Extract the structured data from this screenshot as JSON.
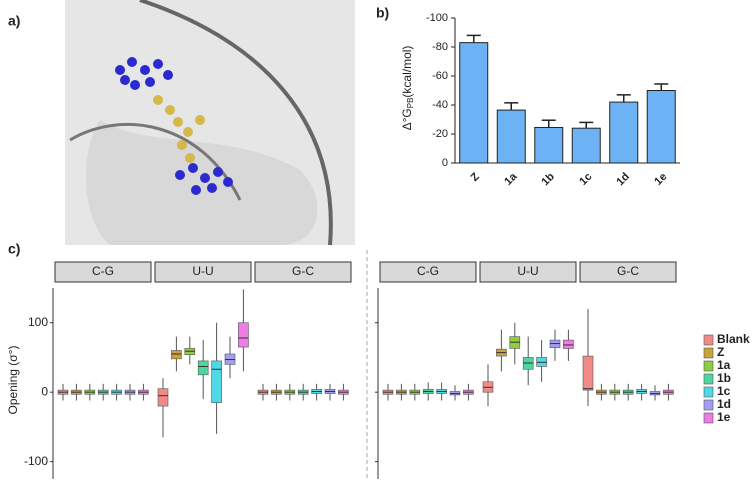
{
  "panel_labels": [
    "a)",
    "b)",
    "c)"
  ],
  "chart_data": [
    {
      "type": "bar",
      "ylabel_parts": [
        "Δ°G",
        "PB",
        "(kcal/mol)"
      ],
      "categories": [
        "Z",
        "1a",
        "1b",
        "1c",
        "1d",
        "1e"
      ],
      "values": [
        -83,
        -36.5,
        -24.5,
        -24,
        -42,
        -50
      ],
      "errors": [
        5,
        5,
        5,
        4,
        5,
        4.5
      ],
      "color": "#6cb2f4",
      "ylim": [
        0,
        -100
      ],
      "yticks": [
        -100,
        -80,
        -60,
        -40,
        -20,
        0
      ]
    },
    {
      "type": "box",
      "ylabel": "Opening (σ°)",
      "ylim": [
        -125,
        150
      ],
      "yticks": [
        -100,
        0,
        100
      ],
      "facets": [
        "C-G",
        "U-U",
        "G-C"
      ],
      "series": [
        {
          "name": "Blank",
          "color": "#f08a86",
          "left": [
            [
              -12,
              -3,
              0,
              3,
              12
            ],
            [
              -65,
              -20,
              -5,
              5,
              20
            ],
            [
              -12,
              -3,
              0,
              3,
              12
            ]
          ],
          "right": [
            [
              -12,
              -3,
              0,
              3,
              12
            ],
            [
              -20,
              0,
              7,
              15,
              40
            ],
            [
              -20,
              3,
              5,
              52,
              120
            ]
          ]
        },
        {
          "name": "Z",
          "color": "#c9a23a",
          "left": [
            [
              -12,
              -3,
              0,
              3,
              12
            ],
            [
              30,
              48,
              55,
              60,
              80
            ],
            [
              -12,
              -3,
              0,
              3,
              12
            ]
          ],
          "right": [
            [
              -12,
              -3,
              0,
              3,
              12
            ],
            [
              30,
              52,
              57,
              62,
              90
            ],
            [
              -12,
              -3,
              0,
              3,
              12
            ]
          ]
        },
        {
          "name": "1a",
          "color": "#8fcf3f",
          "left": [
            [
              -12,
              -3,
              0,
              3,
              12
            ],
            [
              40,
              54,
              59,
              63,
              80
            ],
            [
              -12,
              -3,
              0,
              3,
              12
            ]
          ],
          "right": [
            [
              -12,
              -3,
              0,
              3,
              12
            ],
            [
              40,
              63,
              72,
              80,
              100
            ],
            [
              -12,
              -3,
              0,
              3,
              12
            ]
          ]
        },
        {
          "name": "1b",
          "color": "#4fd6a0",
          "left": [
            [
              -12,
              -3,
              0,
              3,
              12
            ],
            [
              -10,
              25,
              37,
              45,
              75
            ],
            [
              -12,
              -3,
              0,
              3,
              12
            ]
          ],
          "right": [
            [
              -12,
              -2,
              1,
              4,
              14
            ],
            [
              10,
              33,
              42,
              50,
              80
            ],
            [
              -12,
              -3,
              0,
              3,
              12
            ]
          ]
        },
        {
          "name": "1c",
          "color": "#4fd9e6",
          "left": [
            [
              -12,
              -3,
              0,
              3,
              12
            ],
            [
              -60,
              -15,
              33,
              45,
              100
            ],
            [
              -12,
              -2,
              1,
              4,
              12
            ]
          ],
          "right": [
            [
              -12,
              -2,
              1,
              4,
              14
            ],
            [
              15,
              37,
              43,
              50,
              75
            ],
            [
              -12,
              -2,
              1,
              4,
              12
            ]
          ]
        },
        {
          "name": "1d",
          "color": "#a39ef2",
          "left": [
            [
              -12,
              -3,
              0,
              3,
              12
            ],
            [
              20,
              40,
              47,
              55,
              80
            ],
            [
              -12,
              -2,
              1,
              4,
              12
            ]
          ],
          "right": [
            [
              -12,
              -4,
              -2,
              1,
              10
            ],
            [
              45,
              64,
              70,
              75,
              90
            ],
            [
              -12,
              -4,
              -2,
              1,
              10
            ]
          ]
        },
        {
          "name": "1e",
          "color": "#f07ae6",
          "left": [
            [
              -12,
              -3,
              0,
              3,
              12
            ],
            [
              30,
              65,
              78,
              100,
              148
            ],
            [
              -12,
              -3,
              0,
              3,
              12
            ]
          ],
          "right": [
            [
              -12,
              -3,
              0,
              3,
              12
            ],
            [
              45,
              63,
              68,
              75,
              90
            ],
            [
              -12,
              -3,
              0,
              3,
              12
            ]
          ]
        }
      ]
    }
  ]
}
